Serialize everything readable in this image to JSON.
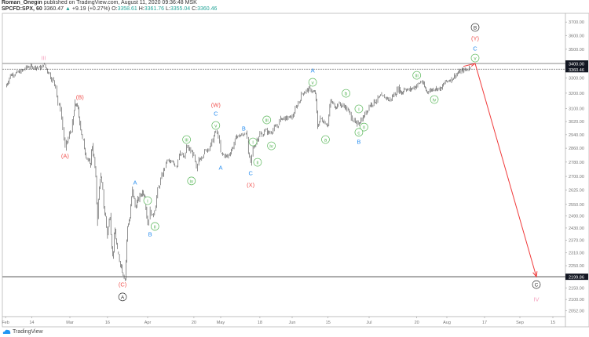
{
  "header": {
    "author": "Roman_Onegin",
    "published_text": "published on TradingView.com, August 11, 2020 09:36:48 MSK",
    "symbol": "SPCFD:SPX, 60",
    "last": "3360.47",
    "change_arrow": "▲",
    "change": "+9.19 (+0.27%)",
    "open_label": "O:",
    "open": "3358.61",
    "high_label": "H:",
    "high": "3361.76",
    "low_label": "L:",
    "low": "3355.04",
    "close_label": "C:",
    "close": "3360.46"
  },
  "footer": {
    "logo_text": "TradingView"
  },
  "colors": {
    "red": "#f0524f",
    "blue": "#2a8ff0",
    "green": "#5cb85c",
    "pink": "#f4a0bd",
    "dark": "#333333",
    "arrow": "#f03a3a"
  },
  "chart_data": {
    "type": "line",
    "title": "SPCFD:SPX, 60",
    "scale": "log",
    "ylim": [
      2030,
      3760
    ],
    "xlim": [
      "2020-02-01",
      "2020-09-22"
    ],
    "y_ticks": [
      "3700.00",
      "3600.00",
      "3500.00",
      "3300.00",
      "3200.00",
      "3100.00",
      "3020.00",
      "2940.00",
      "2860.00",
      "2780.00",
      "2700.00",
      "2625.00",
      "2550.00",
      "2490.00",
      "2430.00",
      "2370.00",
      "2310.00",
      "2250.00",
      "2150.00",
      "2100.00",
      "2052.00"
    ],
    "x_ticks": [
      {
        "label": "Feb",
        "date": "2020-02-03"
      },
      {
        "label": "14",
        "date": "2020-02-14"
      },
      {
        "label": "Mar",
        "date": "2020-03-01"
      },
      {
        "label": "16",
        "date": "2020-03-16"
      },
      {
        "label": "Apr",
        "date": "2020-04-01"
      },
      {
        "label": "20",
        "date": "2020-04-20"
      },
      {
        "label": "May",
        "date": "2020-05-01"
      },
      {
        "label": "18",
        "date": "2020-05-18"
      },
      {
        "label": "Jun",
        "date": "2020-06-01"
      },
      {
        "label": "15",
        "date": "2020-06-15"
      },
      {
        "label": "Jul",
        "date": "2020-07-01"
      },
      {
        "label": "20",
        "date": "2020-07-20"
      },
      {
        "label": "Aug",
        "date": "2020-08-01"
      },
      {
        "label": "17",
        "date": "2020-08-17"
      },
      {
        "label": "Sep",
        "date": "2020-09-01"
      },
      {
        "label": "15",
        "date": "2020-09-15"
      }
    ],
    "horizontal_lines": [
      {
        "price": 3400.0,
        "label": "3400.00",
        "style": "solid"
      },
      {
        "price": 3360.46,
        "label": "3360.46",
        "style": "dashed"
      },
      {
        "price": 2199.86,
        "label": "2199.86",
        "style": "solid-thick"
      }
    ],
    "series": [
      {
        "name": "SPX 60m",
        "points": [
          [
            "02-03",
            3240
          ],
          [
            "02-05",
            3320
          ],
          [
            "02-07",
            3330
          ],
          [
            "02-10",
            3350
          ],
          [
            "02-12",
            3375
          ],
          [
            "02-14",
            3378
          ],
          [
            "02-18",
            3370
          ],
          [
            "02-19",
            3393
          ],
          [
            "02-21",
            3340
          ],
          [
            "02-24",
            3250
          ],
          [
            "02-25",
            3130
          ],
          [
            "02-26",
            3100
          ],
          [
            "02-27",
            2980
          ],
          [
            "02-28",
            2855
          ],
          [
            "03-02",
            3000
          ],
          [
            "03-03",
            3130
          ],
          [
            "03-04",
            3120
          ],
          [
            "03-05",
            3020
          ],
          [
            "03-06",
            2910
          ],
          [
            "03-09",
            2750
          ],
          [
            "03-10",
            2880
          ],
          [
            "03-11",
            2750
          ],
          [
            "03-12",
            2480
          ],
          [
            "03-13",
            2710
          ],
          [
            "03-16",
            2400
          ],
          [
            "03-17",
            2500
          ],
          [
            "03-18",
            2290
          ],
          [
            "03-19",
            2420
          ],
          [
            "03-20",
            2310
          ],
          [
            "03-23",
            2192
          ],
          [
            "03-24",
            2440
          ],
          [
            "03-25",
            2480
          ],
          [
            "03-26",
            2630
          ],
          [
            "03-27",
            2540
          ],
          [
            "03-30",
            2620
          ],
          [
            "03-31",
            2590
          ],
          [
            "04-01",
            2450
          ],
          [
            "04-02",
            2520
          ],
          [
            "04-03",
            2490
          ],
          [
            "04-06",
            2660
          ],
          [
            "04-08",
            2750
          ],
          [
            "04-09",
            2790
          ],
          [
            "04-13",
            2760
          ],
          [
            "04-14",
            2840
          ],
          [
            "04-16",
            2800
          ],
          [
            "04-17",
            2870
          ],
          [
            "04-20",
            2820
          ],
          [
            "04-21",
            2730
          ],
          [
            "04-22",
            2790
          ],
          [
            "04-24",
            2830
          ],
          [
            "04-27",
            2880
          ],
          [
            "04-29",
            2960
          ],
          [
            "04-30",
            2930
          ],
          [
            "05-01",
            2830
          ],
          [
            "05-04",
            2810
          ],
          [
            "05-06",
            2860
          ],
          [
            "05-08",
            2930
          ],
          [
            "05-11",
            2940
          ],
          [
            "05-12",
            2960
          ],
          [
            "05-13",
            2830
          ],
          [
            "05-14",
            2770
          ],
          [
            "05-15",
            2860
          ],
          [
            "05-18",
            2950
          ],
          [
            "05-19",
            2930
          ],
          [
            "05-20",
            2970
          ],
          [
            "05-22",
            2950
          ],
          [
            "05-26",
            3000
          ],
          [
            "05-27",
            3040
          ],
          [
            "05-29",
            3040
          ],
          [
            "06-01",
            3050
          ],
          [
            "06-03",
            3120
          ],
          [
            "06-05",
            3200
          ],
          [
            "06-08",
            3230
          ],
          [
            "06-09",
            3210
          ],
          [
            "06-10",
            3200
          ],
          [
            "06-11",
            2990
          ],
          [
            "06-12",
            3040
          ],
          [
            "06-15",
            3000
          ],
          [
            "06-16",
            3150
          ],
          [
            "06-18",
            3110
          ],
          [
            "06-19",
            3130
          ],
          [
            "06-22",
            3110
          ],
          [
            "06-24",
            3050
          ],
          [
            "06-26",
            3000
          ],
          [
            "06-29",
            3050
          ],
          [
            "07-01",
            3120
          ],
          [
            "07-06",
            3180
          ],
          [
            "07-08",
            3170
          ],
          [
            "07-09",
            3150
          ],
          [
            "07-13",
            3235
          ],
          [
            "07-14",
            3195
          ],
          [
            "07-15",
            3230
          ],
          [
            "07-17",
            3220
          ],
          [
            "07-20",
            3250
          ],
          [
            "07-22",
            3280
          ],
          [
            "07-23",
            3240
          ],
          [
            "07-24",
            3210
          ],
          [
            "07-27",
            3230
          ],
          [
            "07-30",
            3230
          ],
          [
            "07-31",
            3270
          ],
          [
            "08-03",
            3295
          ],
          [
            "08-05",
            3325
          ],
          [
            "08-07",
            3350
          ],
          [
            "08-10",
            3360
          ],
          [
            "08-11",
            3380
          ]
        ]
      }
    ],
    "projection_arrow": [
      [
        "08-08",
        3380
      ],
      [
        "08-13",
        3400
      ],
      [
        "09-08",
        2199.86
      ]
    ],
    "annotations": [
      {
        "text": "III",
        "date": "02-19",
        "price": 3438,
        "color": "pink",
        "circled": false
      },
      {
        "text": "(B)",
        "date": "03-05",
        "price": 3174,
        "color": "red",
        "circled": false
      },
      {
        "text": "(A)",
        "date": "02-28",
        "price": 2815,
        "color": "red",
        "circled": false
      },
      {
        "text": "(C)",
        "date": "03-22",
        "price": 2165,
        "color": "red",
        "circled": false
      },
      {
        "text": "A",
        "date": "03-22",
        "price": 2111,
        "color": "dark",
        "circled": true
      },
      {
        "text": "A",
        "date": "03-27",
        "price": 2666,
        "color": "blue",
        "circled": false
      },
      {
        "text": "i",
        "date": "04-01",
        "price": 2570,
        "color": "green",
        "circled": true
      },
      {
        "text": "ii",
        "date": "04-04",
        "price": 2438,
        "color": "green",
        "circled": true
      },
      {
        "text": "B",
        "date": "04-02",
        "price": 2399,
        "color": "blue",
        "circled": false
      },
      {
        "text": "iii",
        "date": "04-17",
        "price": 2911,
        "color": "green",
        "circled": true
      },
      {
        "text": "iv",
        "date": "04-19",
        "price": 2675,
        "color": "green",
        "circled": true
      },
      {
        "text": "(W)",
        "date": "04-29",
        "price": 3124,
        "color": "red",
        "circled": false
      },
      {
        "text": "C",
        "date": "04-29",
        "price": 3069,
        "color": "blue",
        "circled": false
      },
      {
        "text": "v",
        "date": "04-29",
        "price": 2996,
        "color": "green",
        "circled": true
      },
      {
        "text": "A",
        "date": "05-01",
        "price": 2748,
        "color": "blue",
        "circled": false
      },
      {
        "text": "B",
        "date": "05-11",
        "price": 2977,
        "color": "blue",
        "circled": false
      },
      {
        "text": "i",
        "date": "05-15",
        "price": 2897,
        "color": "green",
        "circled": true
      },
      {
        "text": "ii",
        "date": "05-17",
        "price": 2779,
        "color": "green",
        "circled": true
      },
      {
        "text": "C",
        "date": "05-14",
        "price": 2718,
        "color": "blue",
        "circled": false
      },
      {
        "text": "(X)",
        "date": "05-14",
        "price": 2653,
        "color": "red",
        "circled": false
      },
      {
        "text": "iii",
        "date": "05-21",
        "price": 3030,
        "color": "green",
        "circled": true
      },
      {
        "text": "iv",
        "date": "05-23",
        "price": 2874,
        "color": "green",
        "circled": true
      },
      {
        "text": "A",
        "date": "06-09",
        "price": 3351,
        "color": "blue",
        "circled": false
      },
      {
        "text": "v",
        "date": "06-09",
        "price": 3272,
        "color": "green",
        "circled": true
      },
      {
        "text": "a",
        "date": "06-14",
        "price": 2911,
        "color": "green",
        "circled": true
      },
      {
        "text": "b",
        "date": "06-22",
        "price": 3199,
        "color": "green",
        "circled": true
      },
      {
        "text": "i",
        "date": "06-27",
        "price": 3099,
        "color": "green",
        "circled": true
      },
      {
        "text": "ii",
        "date": "06-29",
        "price": 2986,
        "color": "green",
        "circled": true
      },
      {
        "text": "c",
        "date": "06-27",
        "price": 2954,
        "color": "green",
        "circled": true
      },
      {
        "text": "B",
        "date": "06-27",
        "price": 2897,
        "color": "blue",
        "circled": false
      },
      {
        "text": "iii",
        "date": "07-20",
        "price": 3319,
        "color": "green",
        "circled": true
      },
      {
        "text": "iv",
        "date": "07-27",
        "price": 3159,
        "color": "green",
        "circled": true
      },
      {
        "text": "B",
        "date": "08-13",
        "price": 3660,
        "color": "dark",
        "circled": true
      },
      {
        "text": "(Y)",
        "date": "08-13",
        "price": 3578,
        "color": "red",
        "circled": false
      },
      {
        "text": "C",
        "date": "08-13",
        "price": 3505,
        "color": "blue",
        "circled": false
      },
      {
        "text": "v",
        "date": "08-13",
        "price": 3438,
        "color": "green",
        "circled": true
      },
      {
        "text": "C",
        "date": "09-08",
        "price": 2165,
        "color": "dark",
        "circled": true
      },
      {
        "text": "IV",
        "date": "09-08",
        "price": 2100,
        "color": "pink",
        "circled": false
      }
    ]
  }
}
